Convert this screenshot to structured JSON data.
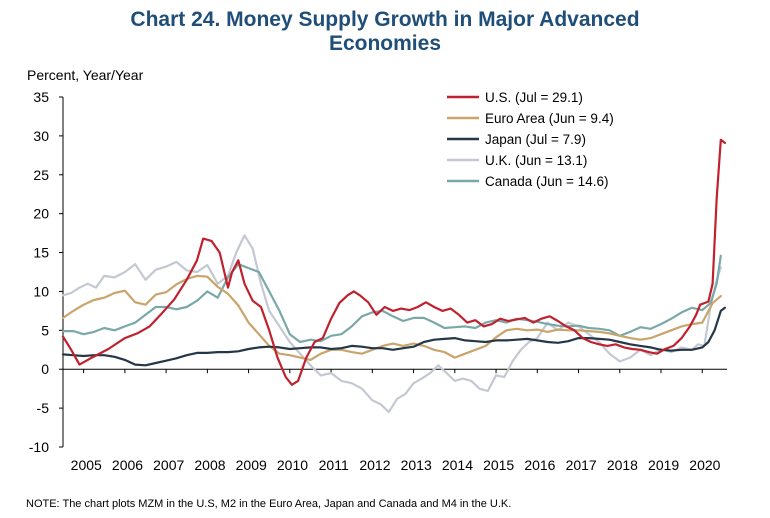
{
  "chart_data": {
    "type": "line",
    "title": "Chart 24. Money Supply Growth in Major Advanced Economies",
    "title_lines": [
      "Chart 24. Money Supply Growth in Major Advanced",
      "Economies"
    ],
    "ylabel": "Percent, Year/Year",
    "xlabel": "",
    "ylim": [
      -10,
      35
    ],
    "xlim": [
      2004.5,
      2020.6
    ],
    "yticks": [
      "35",
      "30",
      "25",
      "20",
      "15",
      "10",
      "5",
      "0",
      "-5",
      "-10"
    ],
    "yticks_values": [
      35,
      30,
      25,
      20,
      15,
      10,
      5,
      0,
      -5,
      -10
    ],
    "xticks": [
      "2005",
      "2006",
      "2007",
      "2008",
      "2009",
      "2010",
      "2011",
      "2012",
      "2013",
      "2014",
      "2015",
      "2016",
      "2017",
      "2018",
      "2019",
      "2020"
    ],
    "legend_position": "top-right",
    "grid": false,
    "series": [
      {
        "name": "U.S. (Jul = 29.1)",
        "color": "#c0212e",
        "x": [
          2004.5,
          2004.7,
          2004.9,
          2005.2,
          2005.6,
          2006.0,
          2006.3,
          2006.6,
          2006.9,
          2007.2,
          2007.5,
          2007.75,
          2007.9,
          2008.1,
          2008.3,
          2008.5,
          2008.6,
          2008.75,
          2008.9,
          2009.1,
          2009.3,
          2009.5,
          2009.7,
          2009.9,
          2010.05,
          2010.2,
          2010.4,
          2010.6,
          2010.8,
          2011.0,
          2011.2,
          2011.4,
          2011.55,
          2011.7,
          2011.9,
          2012.1,
          2012.3,
          2012.5,
          2012.7,
          2012.9,
          2013.1,
          2013.3,
          2013.5,
          2013.7,
          2013.9,
          2014.1,
          2014.3,
          2014.5,
          2014.7,
          2014.9,
          2015.1,
          2015.3,
          2015.5,
          2015.7,
          2015.9,
          2016.1,
          2016.3,
          2016.5,
          2016.7,
          2016.9,
          2017.1,
          2017.3,
          2017.5,
          2017.7,
          2017.9,
          2018.1,
          2018.3,
          2018.5,
          2018.7,
          2018.9,
          2019.1,
          2019.3,
          2019.5,
          2019.7,
          2019.85,
          2019.95,
          2020.05,
          2020.15,
          2020.25,
          2020.35,
          2020.45,
          2020.55
        ],
        "values": [
          4.2,
          2.5,
          0.6,
          1.5,
          2.6,
          4.0,
          4.6,
          5.5,
          7.2,
          9.0,
          11.5,
          14.0,
          16.8,
          16.5,
          15.0,
          10.5,
          12.5,
          14.0,
          11.0,
          8.8,
          8.0,
          5.0,
          1.5,
          -1.0,
          -2.0,
          -1.5,
          1.5,
          3.5,
          4.0,
          6.5,
          8.5,
          9.5,
          10.0,
          9.5,
          8.6,
          7.0,
          8.0,
          7.5,
          7.8,
          7.6,
          8.0,
          8.6,
          8.0,
          7.5,
          7.8,
          7.0,
          6.0,
          6.3,
          5.5,
          5.8,
          6.5,
          6.2,
          6.4,
          6.6,
          6.0,
          6.5,
          6.8,
          6.2,
          5.5,
          5.0,
          4.0,
          3.5,
          3.2,
          3.0,
          3.2,
          2.8,
          2.6,
          2.5,
          2.2,
          2.0,
          2.6,
          3.0,
          4.0,
          5.5,
          7.0,
          8.3,
          8.5,
          8.7,
          11.0,
          22.0,
          29.5,
          29.1
        ]
      },
      {
        "name": "Euro Area (Jun = 9.4)",
        "color": "#c9a46b",
        "x": [
          2004.5,
          2004.75,
          2005.0,
          2005.25,
          2005.5,
          2005.75,
          2006.0,
          2006.25,
          2006.5,
          2006.75,
          2007.0,
          2007.25,
          2007.5,
          2007.75,
          2008.0,
          2008.25,
          2008.5,
          2008.75,
          2009.0,
          2009.25,
          2009.5,
          2009.75,
          2010.0,
          2010.25,
          2010.5,
          2010.75,
          2011.0,
          2011.25,
          2011.5,
          2011.75,
          2012.0,
          2012.25,
          2012.5,
          2012.75,
          2013.0,
          2013.25,
          2013.5,
          2013.75,
          2014.0,
          2014.25,
          2014.5,
          2014.75,
          2015.0,
          2015.25,
          2015.5,
          2015.75,
          2016.0,
          2016.25,
          2016.5,
          2016.75,
          2017.0,
          2017.25,
          2017.5,
          2017.75,
          2018.0,
          2018.25,
          2018.5,
          2018.75,
          2019.0,
          2019.25,
          2019.5,
          2019.75,
          2020.0,
          2020.25,
          2020.45
        ],
        "values": [
          6.6,
          7.5,
          8.3,
          8.9,
          9.2,
          9.8,
          10.1,
          8.6,
          8.3,
          9.6,
          9.9,
          10.9,
          11.6,
          12.0,
          11.9,
          10.6,
          9.7,
          8.2,
          6.0,
          4.5,
          3.0,
          2.0,
          1.8,
          1.5,
          1.2,
          2.0,
          2.5,
          2.5,
          2.2,
          2.0,
          2.5,
          3.0,
          3.3,
          3.0,
          3.3,
          3.0,
          2.5,
          2.2,
          1.5,
          2.0,
          2.5,
          3.0,
          4.1,
          5.0,
          5.2,
          5.0,
          5.1,
          4.8,
          5.1,
          5.0,
          5.0,
          4.9,
          4.8,
          4.6,
          4.3,
          4.0,
          3.8,
          4.0,
          4.5,
          5.0,
          5.5,
          5.8,
          6.0,
          8.5,
          9.4
        ]
      },
      {
        "name": "Japan (Jul = 7.9)",
        "color": "#253746",
        "x": [
          2004.5,
          2004.75,
          2005.0,
          2005.25,
          2005.5,
          2005.75,
          2006.0,
          2006.25,
          2006.5,
          2006.75,
          2007.0,
          2007.25,
          2007.5,
          2007.75,
          2008.0,
          2008.25,
          2008.5,
          2008.75,
          2009.0,
          2009.25,
          2009.5,
          2009.75,
          2010.0,
          2010.25,
          2010.5,
          2010.75,
          2011.0,
          2011.25,
          2011.5,
          2011.75,
          2012.0,
          2012.25,
          2012.5,
          2012.75,
          2013.0,
          2013.25,
          2013.5,
          2013.75,
          2014.0,
          2014.25,
          2014.5,
          2014.75,
          2015.0,
          2015.25,
          2015.5,
          2015.75,
          2016.0,
          2016.25,
          2016.5,
          2016.75,
          2017.0,
          2017.25,
          2017.5,
          2017.75,
          2018.0,
          2018.25,
          2018.5,
          2018.75,
          2019.0,
          2019.25,
          2019.5,
          2019.75,
          2020.0,
          2020.15,
          2020.3,
          2020.45,
          2020.55
        ],
        "values": [
          1.9,
          1.8,
          1.7,
          1.8,
          1.8,
          1.6,
          1.2,
          0.6,
          0.5,
          0.8,
          1.1,
          1.4,
          1.8,
          2.1,
          2.1,
          2.2,
          2.2,
          2.3,
          2.6,
          2.8,
          2.9,
          2.8,
          2.6,
          2.7,
          2.8,
          2.8,
          2.6,
          2.7,
          3.0,
          2.9,
          2.7,
          2.7,
          2.5,
          2.7,
          2.9,
          3.5,
          3.8,
          3.9,
          4.0,
          3.7,
          3.6,
          3.5,
          3.7,
          3.7,
          3.8,
          3.9,
          3.7,
          3.5,
          3.4,
          3.6,
          4.0,
          4.0,
          3.9,
          3.8,
          3.5,
          3.2,
          3.0,
          2.8,
          2.5,
          2.4,
          2.5,
          2.5,
          2.8,
          3.5,
          5.0,
          7.5,
          7.9
        ]
      },
      {
        "name": "U.K. (Jun = 13.1)",
        "color": "#c3c8d2",
        "x": [
          2004.5,
          2004.7,
          2004.9,
          2005.1,
          2005.3,
          2005.5,
          2005.75,
          2006.0,
          2006.25,
          2006.5,
          2006.75,
          2007.0,
          2007.25,
          2007.5,
          2007.75,
          2008.0,
          2008.25,
          2008.5,
          2008.7,
          2008.9,
          2009.1,
          2009.3,
          2009.5,
          2009.75,
          2010.0,
          2010.25,
          2010.5,
          2010.75,
          2011.0,
          2011.25,
          2011.5,
          2011.75,
          2012.0,
          2012.2,
          2012.4,
          2012.6,
          2012.8,
          2013.0,
          2013.2,
          2013.4,
          2013.6,
          2013.8,
          2014.0,
          2014.2,
          2014.4,
          2014.6,
          2014.8,
          2015.0,
          2015.2,
          2015.4,
          2015.6,
          2015.8,
          2016.0,
          2016.25,
          2016.5,
          2016.75,
          2017.0,
          2017.25,
          2017.5,
          2017.75,
          2018.0,
          2018.25,
          2018.5,
          2018.75,
          2019.0,
          2019.25,
          2019.5,
          2019.75,
          2019.9,
          2020.05,
          2020.2,
          2020.35,
          2020.45
        ],
        "values": [
          9.5,
          9.8,
          10.5,
          11.0,
          10.5,
          12.0,
          11.8,
          12.5,
          13.5,
          11.5,
          12.8,
          13.2,
          13.8,
          12.7,
          12.5,
          13.4,
          11.0,
          12.0,
          15.0,
          17.2,
          15.5,
          11.0,
          7.5,
          5.5,
          3.5,
          2.0,
          0.5,
          -0.8,
          -0.5,
          -1.5,
          -1.8,
          -2.5,
          -4.0,
          -4.5,
          -5.5,
          -3.8,
          -3.2,
          -1.8,
          -1.2,
          -0.5,
          0.5,
          -0.5,
          -1.5,
          -1.2,
          -1.5,
          -2.5,
          -2.8,
          -0.8,
          -1.0,
          1.0,
          2.5,
          3.5,
          4.0,
          6.0,
          5.0,
          6.0,
          5.5,
          4.5,
          3.5,
          2.0,
          1.0,
          1.5,
          2.5,
          1.8,
          2.6,
          2.2,
          2.8,
          2.5,
          3.2,
          3.0,
          8.0,
          11.5,
          13.1
        ]
      },
      {
        "name": "Canada (Jun = 14.6)",
        "color": "#7aa8a8",
        "x": [
          2004.5,
          2004.75,
          2005.0,
          2005.25,
          2005.5,
          2005.75,
          2006.0,
          2006.25,
          2006.5,
          2006.75,
          2007.0,
          2007.25,
          2007.5,
          2007.75,
          2008.0,
          2008.25,
          2008.5,
          2008.75,
          2009.0,
          2009.25,
          2009.5,
          2009.75,
          2010.0,
          2010.25,
          2010.5,
          2010.75,
          2011.0,
          2011.25,
          2011.5,
          2011.75,
          2012.0,
          2012.25,
          2012.5,
          2012.75,
          2013.0,
          2013.25,
          2013.5,
          2013.75,
          2014.0,
          2014.25,
          2014.5,
          2014.75,
          2015.0,
          2015.25,
          2015.5,
          2015.75,
          2016.0,
          2016.25,
          2016.5,
          2016.75,
          2017.0,
          2017.25,
          2017.5,
          2017.75,
          2018.0,
          2018.25,
          2018.5,
          2018.75,
          2019.0,
          2019.25,
          2019.5,
          2019.75,
          2020.0,
          2020.2,
          2020.35,
          2020.45
        ],
        "values": [
          4.9,
          4.9,
          4.5,
          4.8,
          5.3,
          5.0,
          5.5,
          6.0,
          7.0,
          8.0,
          8.0,
          7.7,
          8.0,
          8.8,
          10.0,
          9.2,
          11.8,
          13.5,
          13.0,
          12.5,
          10.0,
          7.5,
          4.5,
          3.5,
          3.8,
          3.6,
          4.3,
          4.5,
          5.5,
          6.8,
          7.3,
          7.5,
          6.8,
          6.2,
          6.6,
          6.6,
          6.0,
          5.3,
          5.4,
          5.5,
          5.3,
          6.0,
          6.3,
          6.0,
          6.5,
          6.3,
          6.1,
          5.8,
          5.6,
          5.5,
          5.6,
          5.3,
          5.2,
          5.0,
          4.3,
          4.8,
          5.4,
          5.2,
          5.8,
          6.5,
          7.3,
          7.9,
          7.6,
          8.5,
          11.0,
          14.6
        ]
      }
    ]
  },
  "note": "NOTE: The chart plots MZM in the U.S, M2 in the Euro Area, Japan and Canada and M4 in the U.K."
}
